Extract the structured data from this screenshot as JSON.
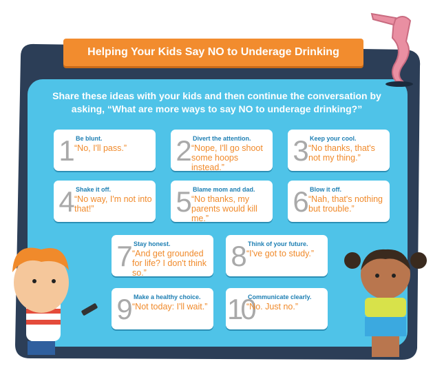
{
  "title": "Helping Your Kids Say NO to Underage Drinking",
  "intro": "Share these ideas with your kids and then continue the conversation by asking, “What are more ways to say NO to underage drinking?”",
  "tips": [
    {
      "number": 1,
      "heading": "Be blunt.",
      "quote": "“No, I'll pass.”"
    },
    {
      "number": 2,
      "heading": "Divert the attention.",
      "quote": "“Nope, I'll go shoot some hoops instead.”"
    },
    {
      "number": 3,
      "heading": "Keep your cool.",
      "quote": "“No thanks, that's not my thing.”"
    },
    {
      "number": 4,
      "heading": "Shake it off.",
      "quote": "“No way, I'm not into that!”"
    },
    {
      "number": 5,
      "heading": "Blame mom and dad.",
      "quote": "“No thanks, my parents would kill me.”"
    },
    {
      "number": 6,
      "heading": "Blow it off.",
      "quote": "“Nah, that's nothing but trouble.”"
    },
    {
      "number": 7,
      "heading": "Stay honest.",
      "quote": "“And get grounded for life? I don't think so.”"
    },
    {
      "number": 8,
      "heading": "Think of your future.",
      "quote": "“I've got to study.”"
    },
    {
      "number": 9,
      "heading": "Make a healthy choice.",
      "quote": "“Not today: I'll wait.”"
    },
    {
      "number": 10,
      "heading": "Communicate clearly.",
      "quote": "“No. Just no.”"
    }
  ]
}
